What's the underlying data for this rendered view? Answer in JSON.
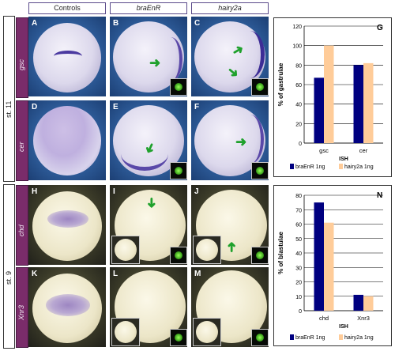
{
  "columns": [
    "Controls",
    "braEnR",
    "hairy2a"
  ],
  "stages": [
    "st. 11",
    "st. 9"
  ],
  "genes": [
    "gsc",
    "cer",
    "chd",
    "Xnr3"
  ],
  "panel_labels": [
    "A",
    "B",
    "C",
    "D",
    "E",
    "F",
    "H",
    "I",
    "J",
    "K",
    "L",
    "M"
  ],
  "colors": {
    "series1": "#000080",
    "series2": "#ffcc99",
    "gene_bar": "#7a2c6a",
    "arrow": "#1fa12c"
  },
  "chart_data": [
    {
      "type": "bar",
      "panel_label": "G",
      "categories": [
        "gsc",
        "cer"
      ],
      "xlabel": "ISH",
      "ylabel": "% of gastrulae",
      "ylim": [
        0,
        120
      ],
      "yticks": [
        "0",
        "20",
        "40",
        "60",
        "80",
        "100",
        "120"
      ],
      "grid": true,
      "legend_position": "bottom",
      "series": [
        {
          "name": "braEnR 1ng",
          "values": [
            67,
            80
          ]
        },
        {
          "name": "hairy2a 1ng",
          "values": [
            100,
            82
          ]
        }
      ]
    },
    {
      "type": "bar",
      "panel_label": "N",
      "categories": [
        "chd",
        "Xnr3"
      ],
      "xlabel": "ISH",
      "ylabel": "% of blastulae",
      "ylim": [
        0,
        80
      ],
      "yticks": [
        "0",
        "10",
        "20",
        "30",
        "40",
        "50",
        "60",
        "70",
        "80"
      ],
      "grid": true,
      "legend_position": "bottom",
      "series": [
        {
          "name": "braEnR 1ng",
          "values": [
            75,
            11
          ]
        },
        {
          "name": "hairy2a 1ng",
          "values": [
            61,
            10
          ]
        }
      ]
    }
  ]
}
